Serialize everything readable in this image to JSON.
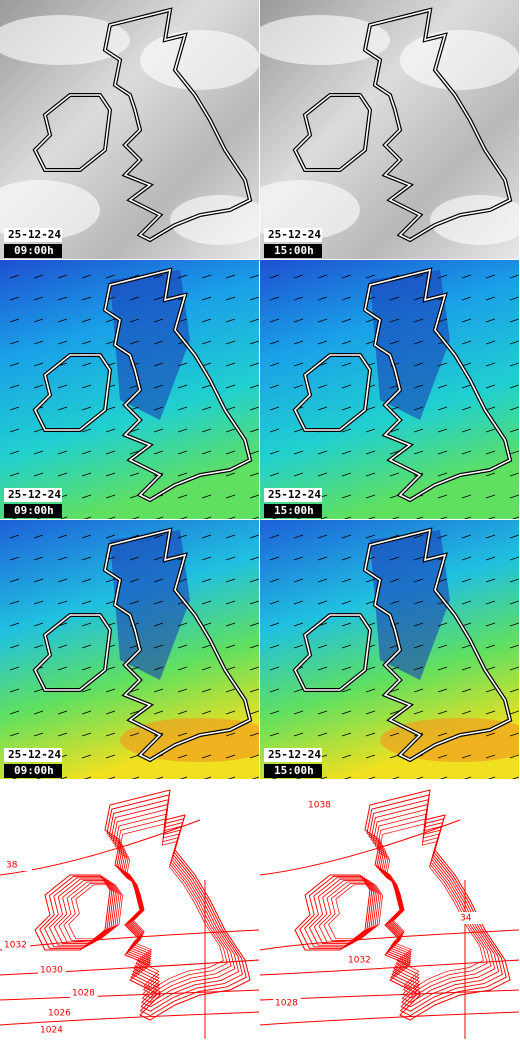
{
  "panels": [
    {
      "kind": "cloud",
      "date": "25-12-24",
      "time": "09:00h"
    },
    {
      "kind": "cloud",
      "date": "25-12-24",
      "time": "15:00h"
    },
    {
      "kind": "wind",
      "date": "25-12-24",
      "time": "09:00h"
    },
    {
      "kind": "wind",
      "date": "25-12-24",
      "time": "15:00h"
    },
    {
      "kind": "gust",
      "date": "25-12-24",
      "time": "09:00h"
    },
    {
      "kind": "gust",
      "date": "25-12-24",
      "time": "15:00h"
    },
    {
      "kind": "pressure",
      "contour_labels": [
        "38",
        "1032",
        "1030",
        "1028",
        "1026",
        "1024"
      ]
    },
    {
      "kind": "pressure",
      "contour_labels": [
        "1038",
        "34",
        "1032",
        "1028"
      ]
    }
  ]
}
